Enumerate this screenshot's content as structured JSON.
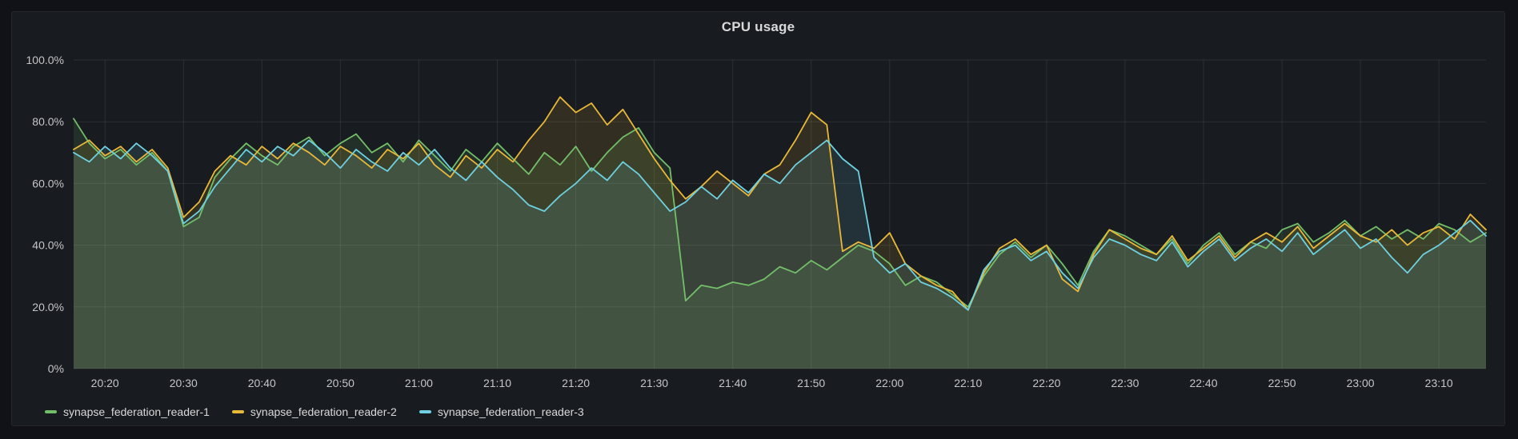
{
  "panel": {
    "title": "CPU usage"
  },
  "theme": {
    "page_background": "#111217",
    "panel_background": "#181b1f",
    "grid_color": "rgba(215,225,240,0.10)",
    "title_color": "#d8d9da",
    "tick_label_color": "#c4c5c8"
  },
  "chart_data": {
    "type": "line",
    "title": "CPU usage",
    "xlabel": "",
    "ylabel": "",
    "ylim": [
      0,
      100
    ],
    "grid": true,
    "legend_position": "bottom-left",
    "fill_opacity": 0.13,
    "y_ticks": {
      "values": [
        0,
        20,
        40,
        60,
        80,
        100
      ],
      "labels": [
        "0%",
        "20.0%",
        "40.0%",
        "60.0%",
        "80.0%",
        "100.0%"
      ]
    },
    "x_ticks": {
      "minutes": [
        4,
        14,
        24,
        34,
        44,
        54,
        64,
        74,
        84,
        94,
        104,
        114,
        124,
        134,
        144,
        154,
        164,
        174
      ],
      "labels": [
        "20:20",
        "20:30",
        "20:40",
        "20:50",
        "21:00",
        "21:10",
        "21:20",
        "21:30",
        "21:40",
        "21:50",
        "22:00",
        "22:10",
        "22:20",
        "22:30",
        "22:40",
        "22:50",
        "23:00",
        "23:10"
      ]
    },
    "x": [
      0,
      2,
      4,
      6,
      8,
      10,
      12,
      14,
      16,
      18,
      20,
      22,
      24,
      26,
      28,
      30,
      32,
      34,
      36,
      38,
      40,
      42,
      44,
      46,
      48,
      50,
      52,
      54,
      56,
      58,
      60,
      62,
      64,
      66,
      68,
      70,
      72,
      74,
      76,
      78,
      80,
      82,
      84,
      86,
      88,
      90,
      92,
      94,
      96,
      98,
      100,
      102,
      104,
      106,
      108,
      110,
      112,
      114,
      116,
      118,
      120,
      122,
      124,
      126,
      128,
      130,
      132,
      134,
      136,
      138,
      140,
      142,
      144,
      146,
      148,
      150,
      152,
      154,
      156,
      158,
      160,
      162,
      164,
      166,
      168,
      170,
      172,
      174,
      176,
      178,
      180
    ],
    "series": [
      {
        "name": "synapse_federation_reader-1",
        "color": "#73BF69",
        "values": [
          81,
          73,
          68,
          71,
          66,
          70,
          64,
          46,
          49,
          62,
          68,
          73,
          69,
          66,
          72,
          75,
          69,
          73,
          76,
          70,
          73,
          67,
          74,
          69,
          64,
          71,
          67,
          73,
          68,
          63,
          70,
          66,
          72,
          64,
          70,
          75,
          78,
          70,
          65,
          22,
          27,
          26,
          28,
          27,
          29,
          33,
          31,
          35,
          32,
          36,
          40,
          38,
          34,
          27,
          30,
          28,
          24,
          20,
          30,
          37,
          41,
          36,
          40,
          34,
          27,
          38,
          45,
          43,
          40,
          37,
          42,
          34,
          40,
          44,
          37,
          41,
          39,
          45,
          47,
          41,
          44,
          48,
          43,
          46,
          42,
          45,
          42,
          47,
          45,
          41,
          44
        ]
      },
      {
        "name": "synapse_federation_reader-2",
        "color": "#EAB839",
        "values": [
          71,
          74,
          69,
          72,
          67,
          71,
          65,
          49,
          54,
          64,
          69,
          66,
          72,
          68,
          73,
          70,
          66,
          72,
          69,
          65,
          71,
          68,
          73,
          66,
          62,
          69,
          65,
          71,
          67,
          74,
          80,
          88,
          83,
          86,
          79,
          84,
          76,
          68,
          61,
          55,
          59,
          64,
          60,
          56,
          63,
          66,
          74,
          83,
          79,
          38,
          41,
          39,
          44,
          34,
          30,
          27,
          25,
          19,
          31,
          39,
          42,
          37,
          40,
          29,
          25,
          37,
          45,
          42,
          39,
          37,
          43,
          35,
          39,
          43,
          36,
          41,
          44,
          41,
          46,
          39,
          43,
          47,
          43,
          41,
          45,
          40,
          44,
          46,
          42,
          50,
          45
        ]
      },
      {
        "name": "synapse_federation_reader-3",
        "color": "#6ED0E0",
        "values": [
          70,
          67,
          72,
          68,
          73,
          69,
          64,
          47,
          51,
          59,
          65,
          71,
          67,
          72,
          69,
          74,
          70,
          65,
          71,
          67,
          64,
          70,
          66,
          71,
          65,
          61,
          67,
          62,
          58,
          53,
          51,
          56,
          60,
          65,
          61,
          67,
          63,
          57,
          51,
          54,
          59,
          55,
          61,
          57,
          63,
          60,
          66,
          70,
          74,
          68,
          64,
          36,
          31,
          34,
          28,
          26,
          23,
          19,
          32,
          38,
          40,
          35,
          38,
          31,
          26,
          36,
          42,
          40,
          37,
          35,
          41,
          33,
          38,
          42,
          35,
          39,
          42,
          38,
          44,
          37,
          41,
          45,
          39,
          42,
          36,
          31,
          37,
          40,
          44,
          48,
          43
        ]
      }
    ]
  },
  "legend": {
    "items": [
      {
        "label": "synapse_federation_reader-1"
      },
      {
        "label": "synapse_federation_reader-2"
      },
      {
        "label": "synapse_federation_reader-3"
      }
    ]
  }
}
